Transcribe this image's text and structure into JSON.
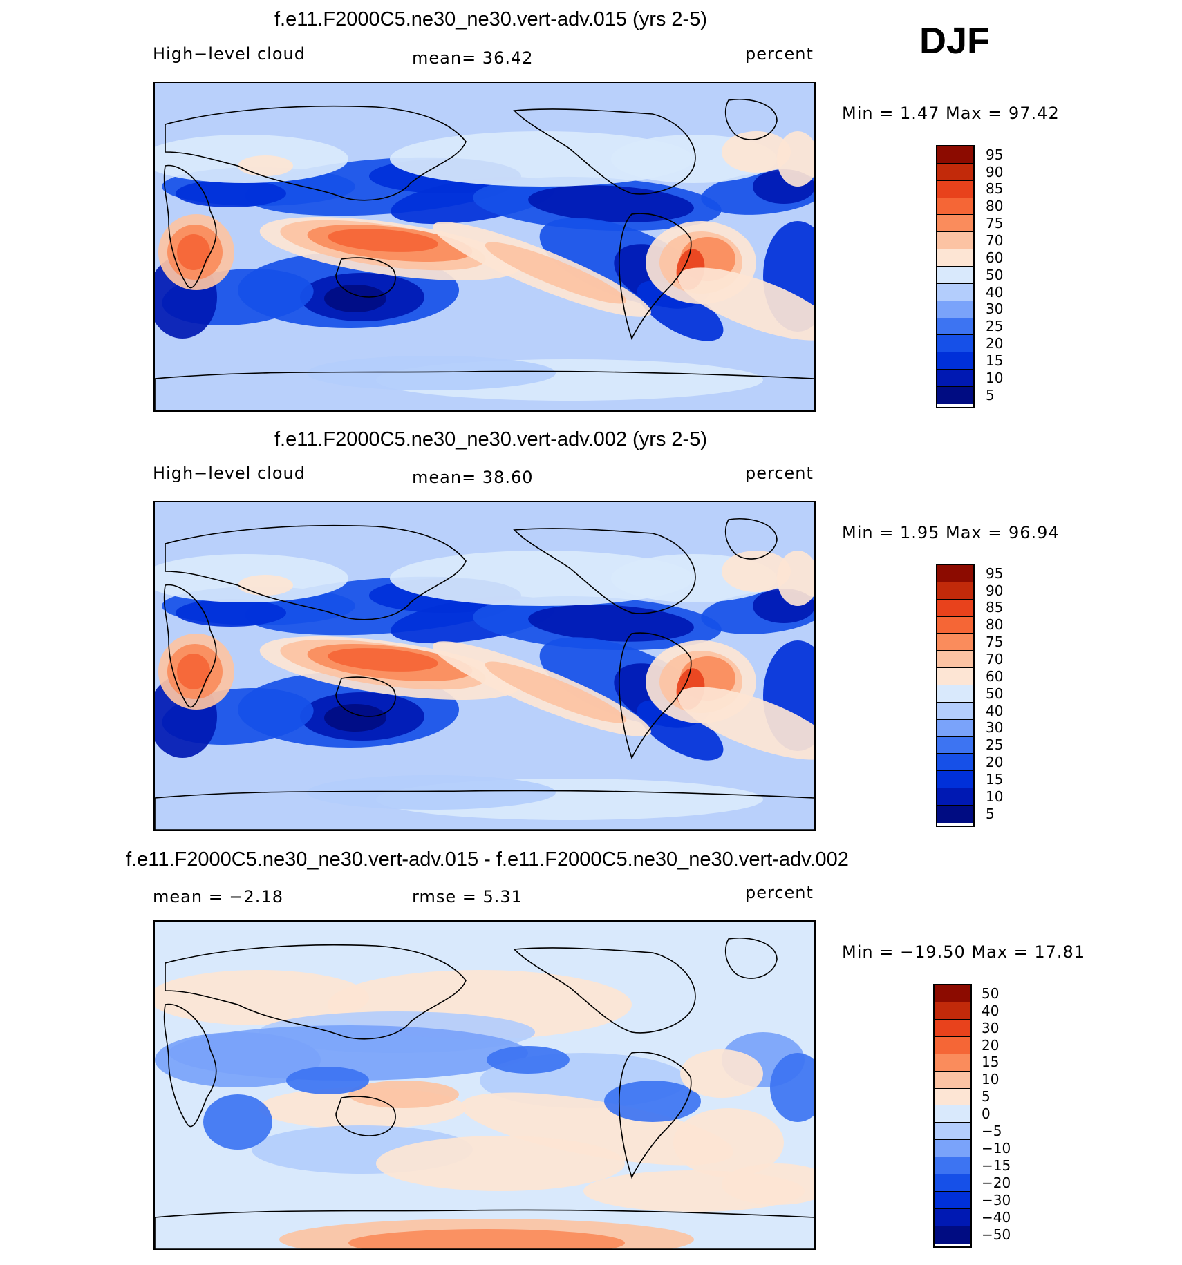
{
  "season": "DJF",
  "colors": {
    "palette_abs": [
      "#000c82",
      "#0019b3",
      "#0030d9",
      "#1650e8",
      "#3d74f2",
      "#7aa3fa",
      "#b3cdfc",
      "#d9e9fc",
      "#fde5d4",
      "#fcc3a3",
      "#fa8c5c",
      "#f56636",
      "#e8421c",
      "#c22a0a",
      "#8c0b00"
    ],
    "palette_diff": [
      "#000c82",
      "#0019b3",
      "#0030d9",
      "#1650e8",
      "#3d74f2",
      "#7aa3fa",
      "#b3cdfc",
      "#d9e9fc",
      "#fde5d4",
      "#fcc3a3",
      "#fa8c5c",
      "#f56636",
      "#e8421c",
      "#c22a0a",
      "#8c0b00"
    ],
    "base_fill": "#b9d0fb",
    "coast": "#000000"
  },
  "panels": [
    {
      "title": "f.e11.F2000C5.ne30_ne30.vert-adv.015 (yrs 2-5)",
      "left_label": "High−level cloud",
      "center_label": "mean=   36.42",
      "units": "percent",
      "minmax": "Min =     1.47  Max =    97.42",
      "colorbar": [
        "95",
        "90",
        "85",
        "80",
        "75",
        "70",
        "60",
        "50",
        "40",
        "30",
        "25",
        "20",
        "15",
        "10",
        "5"
      ],
      "palette": "palette_abs"
    },
    {
      "title": "f.e11.F2000C5.ne30_ne30.vert-adv.002 (yrs 2-5)",
      "left_label": "High−level cloud",
      "center_label": "mean=   38.60",
      "units": "percent",
      "minmax": "Min =     1.95  Max =    96.94",
      "colorbar": [
        "95",
        "90",
        "85",
        "80",
        "75",
        "70",
        "60",
        "50",
        "40",
        "30",
        "25",
        "20",
        "15",
        "10",
        "5"
      ],
      "palette": "palette_abs"
    },
    {
      "title": "f.e11.F2000C5.ne30_ne30.vert-adv.015 - f.e11.F2000C5.ne30_ne30.vert-adv.002",
      "left_label": "mean =   −2.18",
      "center_label": "rmse =    5.31",
      "units": "percent",
      "minmax": "Min = −19.50  Max =    17.81",
      "colorbar": [
        "50",
        "40",
        "30",
        "20",
        "15",
        "10",
        "5",
        "0",
        "−5",
        "−10",
        "−15",
        "−20",
        "−30",
        "−40",
        "−50"
      ],
      "palette": "palette_diff"
    }
  ],
  "chart_data": {
    "type": "heatmap",
    "variable": "High-level cloud",
    "units": "percent",
    "season": "DJF",
    "panels": [
      {
        "case": "f.e11.F2000C5.ne30_ne30.vert-adv.015 (yrs 2-5)",
        "mean": 36.42,
        "min": 1.47,
        "max": 97.42,
        "contour_levels": [
          5,
          10,
          15,
          20,
          25,
          30,
          40,
          50,
          60,
          70,
          75,
          80,
          85,
          90,
          95
        ]
      },
      {
        "case": "f.e11.F2000C5.ne30_ne30.vert-adv.002 (yrs 2-5)",
        "mean": 38.6,
        "min": 1.95,
        "max": 96.94,
        "contour_levels": [
          5,
          10,
          15,
          20,
          25,
          30,
          40,
          50,
          60,
          70,
          75,
          80,
          85,
          90,
          95
        ]
      },
      {
        "case": "f.e11.F2000C5.ne30_ne30.vert-adv.015 - f.e11.F2000C5.ne30_ne30.vert-adv.002",
        "mean": -2.18,
        "rmse": 5.31,
        "min": -19.5,
        "max": 17.81,
        "contour_levels": [
          -50,
          -40,
          -30,
          -20,
          -15,
          -10,
          -5,
          0,
          5,
          10,
          15,
          20,
          30,
          40,
          50
        ]
      }
    ]
  }
}
